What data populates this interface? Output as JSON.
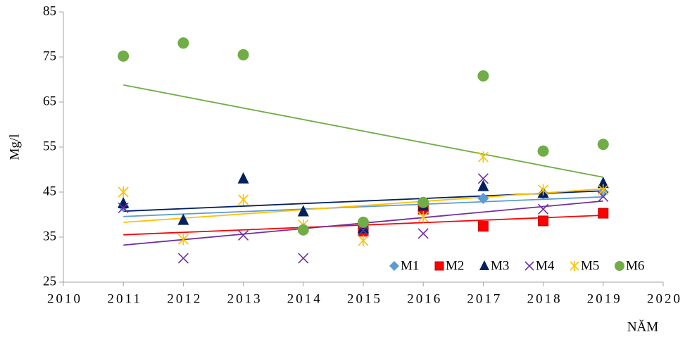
{
  "chart_data": {
    "type": "scatter",
    "x_label": "NĂM",
    "y_label": "Mg/l",
    "x": [
      2011,
      2012,
      2013,
      2014,
      2015,
      2016,
      2017,
      2018,
      2019
    ],
    "xlim": [
      2010,
      2020
    ],
    "xticks": [
      2010,
      2011,
      2012,
      2013,
      2014,
      2015,
      2016,
      2017,
      2018,
      2019,
      2020
    ],
    "ylim": [
      25,
      85
    ],
    "yticks": [
      25,
      35,
      45,
      55,
      65,
      75,
      85
    ],
    "trendline": true,
    "legend": "bottom-right",
    "series": [
      {
        "name": "M1",
        "color": "#5b9bd5",
        "marker": "diamond",
        "values": [
          41.8,
          null,
          null,
          null,
          37,
          41.8,
          43.6,
          44.6,
          45
        ]
      },
      {
        "name": "M2",
        "color": "#ff0000",
        "marker": "square",
        "values": [
          null,
          null,
          null,
          null,
          36.3,
          41.2,
          37.4,
          38.6,
          40.3
        ]
      },
      {
        "name": "M3",
        "color": "#002060",
        "marker": "triangle",
        "values": [
          42.5,
          38.8,
          48,
          40.7,
          37,
          42,
          46.3,
          44.8,
          47
        ]
      },
      {
        "name": "M4",
        "color": "#7030a0",
        "marker": "x",
        "values": [
          41.5,
          30.3,
          35.4,
          30.3,
          36.5,
          35.8,
          48,
          41.2,
          44
        ]
      },
      {
        "name": "M5",
        "color": "#ffc000",
        "marker": "star",
        "values": [
          45,
          34.5,
          43.3,
          37.7,
          34.2,
          39.5,
          52.8,
          45.5,
          45.5
        ]
      },
      {
        "name": "M6",
        "color": "#70ad47",
        "marker": "circle",
        "values": [
          75.2,
          78.1,
          75.5,
          36.6,
          38.3,
          42.7,
          70.8,
          54.1,
          55.6
        ]
      }
    ]
  }
}
